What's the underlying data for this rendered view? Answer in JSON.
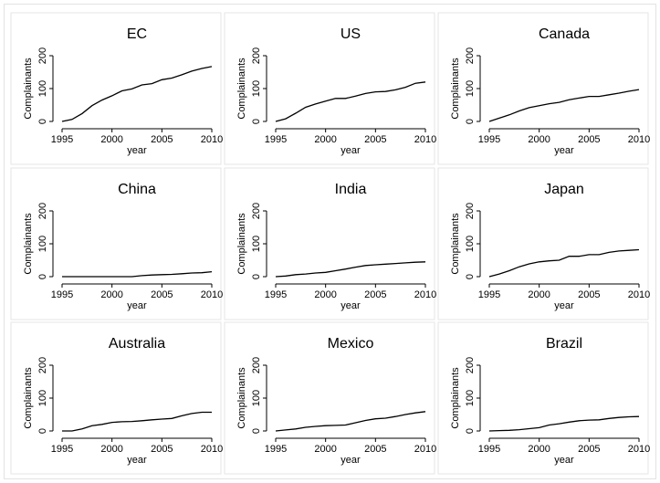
{
  "chart_data": [
    {
      "type": "line",
      "title": "EC",
      "xlabel": "year",
      "ylabel": "Complainants",
      "xlim": [
        1995,
        2010
      ],
      "ylim": [
        0,
        200
      ],
      "xticks": [
        1995,
        2000,
        2005,
        2010
      ],
      "yticks": [
        0,
        100,
        200
      ],
      "x": [
        1995,
        1996,
        1997,
        1998,
        1999,
        2000,
        2001,
        2002,
        2003,
        2004,
        2005,
        2006,
        2007,
        2008,
        2009,
        2010
      ],
      "y": [
        0,
        6,
        24,
        48,
        65,
        78,
        93,
        99,
        111,
        115,
        127,
        132,
        142,
        153,
        161,
        167
      ]
    },
    {
      "type": "line",
      "title": "US",
      "xlabel": "year",
      "ylabel": "Complainants",
      "xlim": [
        1995,
        2010
      ],
      "ylim": [
        0,
        200
      ],
      "xticks": [
        1995,
        2000,
        2005,
        2010
      ],
      "yticks": [
        0,
        100,
        200
      ],
      "x": [
        1995,
        1996,
        1997,
        1998,
        1999,
        2000,
        2001,
        2002,
        2003,
        2004,
        2005,
        2006,
        2007,
        2008,
        2009,
        2010
      ],
      "y": [
        0,
        8,
        25,
        43,
        53,
        62,
        70,
        70,
        77,
        85,
        90,
        91,
        96,
        104,
        116,
        120
      ]
    },
    {
      "type": "line",
      "title": "Canada",
      "xlabel": "year",
      "ylabel": "Complainants",
      "xlim": [
        1995,
        2010
      ],
      "ylim": [
        0,
        200
      ],
      "xticks": [
        1995,
        2000,
        2005,
        2010
      ],
      "yticks": [
        0,
        100,
        200
      ],
      "x": [
        1995,
        1996,
        1997,
        1998,
        1999,
        2000,
        2001,
        2002,
        2003,
        2004,
        2005,
        2006,
        2007,
        2008,
        2009,
        2010
      ],
      "y": [
        0,
        10,
        20,
        32,
        42,
        48,
        54,
        58,
        66,
        71,
        76,
        76,
        81,
        86,
        92,
        97
      ]
    },
    {
      "type": "line",
      "title": "China",
      "xlabel": "year",
      "ylabel": "Complainants",
      "xlim": [
        1995,
        2010
      ],
      "ylim": [
        0,
        200
      ],
      "xticks": [
        1995,
        2000,
        2005,
        2010
      ],
      "yticks": [
        0,
        100,
        200
      ],
      "x": [
        1995,
        1996,
        1997,
        1998,
        1999,
        2000,
        2001,
        2002,
        2003,
        2004,
        2005,
        2006,
        2007,
        2008,
        2009,
        2010
      ],
      "y": [
        0,
        0,
        0,
        0,
        0,
        0,
        0,
        0,
        3,
        5,
        6,
        7,
        9,
        11,
        12,
        15
      ]
    },
    {
      "type": "line",
      "title": "India",
      "xlabel": "year",
      "ylabel": "Complainants",
      "xlim": [
        1995,
        2010
      ],
      "ylim": [
        0,
        200
      ],
      "xticks": [
        1995,
        2000,
        2005,
        2010
      ],
      "yticks": [
        0,
        100,
        200
      ],
      "x": [
        1995,
        1996,
        1997,
        1998,
        1999,
        2000,
        2001,
        2002,
        2003,
        2004,
        2005,
        2006,
        2007,
        2008,
        2009,
        2010
      ],
      "y": [
        0,
        2,
        6,
        8,
        11,
        13,
        18,
        23,
        29,
        34,
        36,
        38,
        40,
        42,
        44,
        45
      ]
    },
    {
      "type": "line",
      "title": "Japan",
      "xlabel": "year",
      "ylabel": "Complainants",
      "xlim": [
        1995,
        2010
      ],
      "ylim": [
        0,
        200
      ],
      "xticks": [
        1995,
        2000,
        2005,
        2010
      ],
      "yticks": [
        0,
        100,
        200
      ],
      "x": [
        1995,
        1996,
        1997,
        1998,
        1999,
        2000,
        2001,
        2002,
        2003,
        2004,
        2005,
        2006,
        2007,
        2008,
        2009,
        2010
      ],
      "y": [
        0,
        8,
        18,
        30,
        39,
        45,
        48,
        50,
        62,
        62,
        67,
        67,
        74,
        78,
        80,
        82
      ]
    },
    {
      "type": "line",
      "title": "Australia",
      "xlabel": "year",
      "ylabel": "Complainants",
      "xlim": [
        1995,
        2010
      ],
      "ylim": [
        0,
        200
      ],
      "xticks": [
        1995,
        2000,
        2005,
        2010
      ],
      "yticks": [
        0,
        100,
        200
      ],
      "x": [
        1995,
        1996,
        1997,
        1998,
        1999,
        2000,
        2001,
        2002,
        2003,
        2004,
        2005,
        2006,
        2007,
        2008,
        2009,
        2010
      ],
      "y": [
        0,
        0,
        6,
        16,
        20,
        26,
        28,
        29,
        31,
        34,
        36,
        38,
        46,
        53,
        57,
        57
      ]
    },
    {
      "type": "line",
      "title": "Mexico",
      "xlabel": "year",
      "ylabel": "Complainants",
      "xlim": [
        1995,
        2010
      ],
      "ylim": [
        0,
        200
      ],
      "xticks": [
        1995,
        2000,
        2005,
        2010
      ],
      "yticks": [
        0,
        100,
        200
      ],
      "x": [
        1995,
        1996,
        1997,
        1998,
        1999,
        2000,
        2001,
        2002,
        2003,
        2004,
        2005,
        2006,
        2007,
        2008,
        2009,
        2010
      ],
      "y": [
        0,
        3,
        6,
        11,
        14,
        16,
        17,
        18,
        25,
        32,
        37,
        39,
        44,
        50,
        55,
        59
      ]
    },
    {
      "type": "line",
      "title": "Brazil",
      "xlabel": "year",
      "ylabel": "Complainants",
      "xlim": [
        1995,
        2010
      ],
      "ylim": [
        0,
        200
      ],
      "xticks": [
        1995,
        2000,
        2005,
        2010
      ],
      "yticks": [
        0,
        100,
        200
      ],
      "x": [
        1995,
        1996,
        1997,
        1998,
        1999,
        2000,
        2001,
        2002,
        2003,
        2004,
        2005,
        2006,
        2007,
        2008,
        2009,
        2010
      ],
      "y": [
        0,
        1,
        2,
        4,
        7,
        10,
        18,
        22,
        27,
        31,
        33,
        34,
        38,
        41,
        43,
        44
      ]
    }
  ]
}
